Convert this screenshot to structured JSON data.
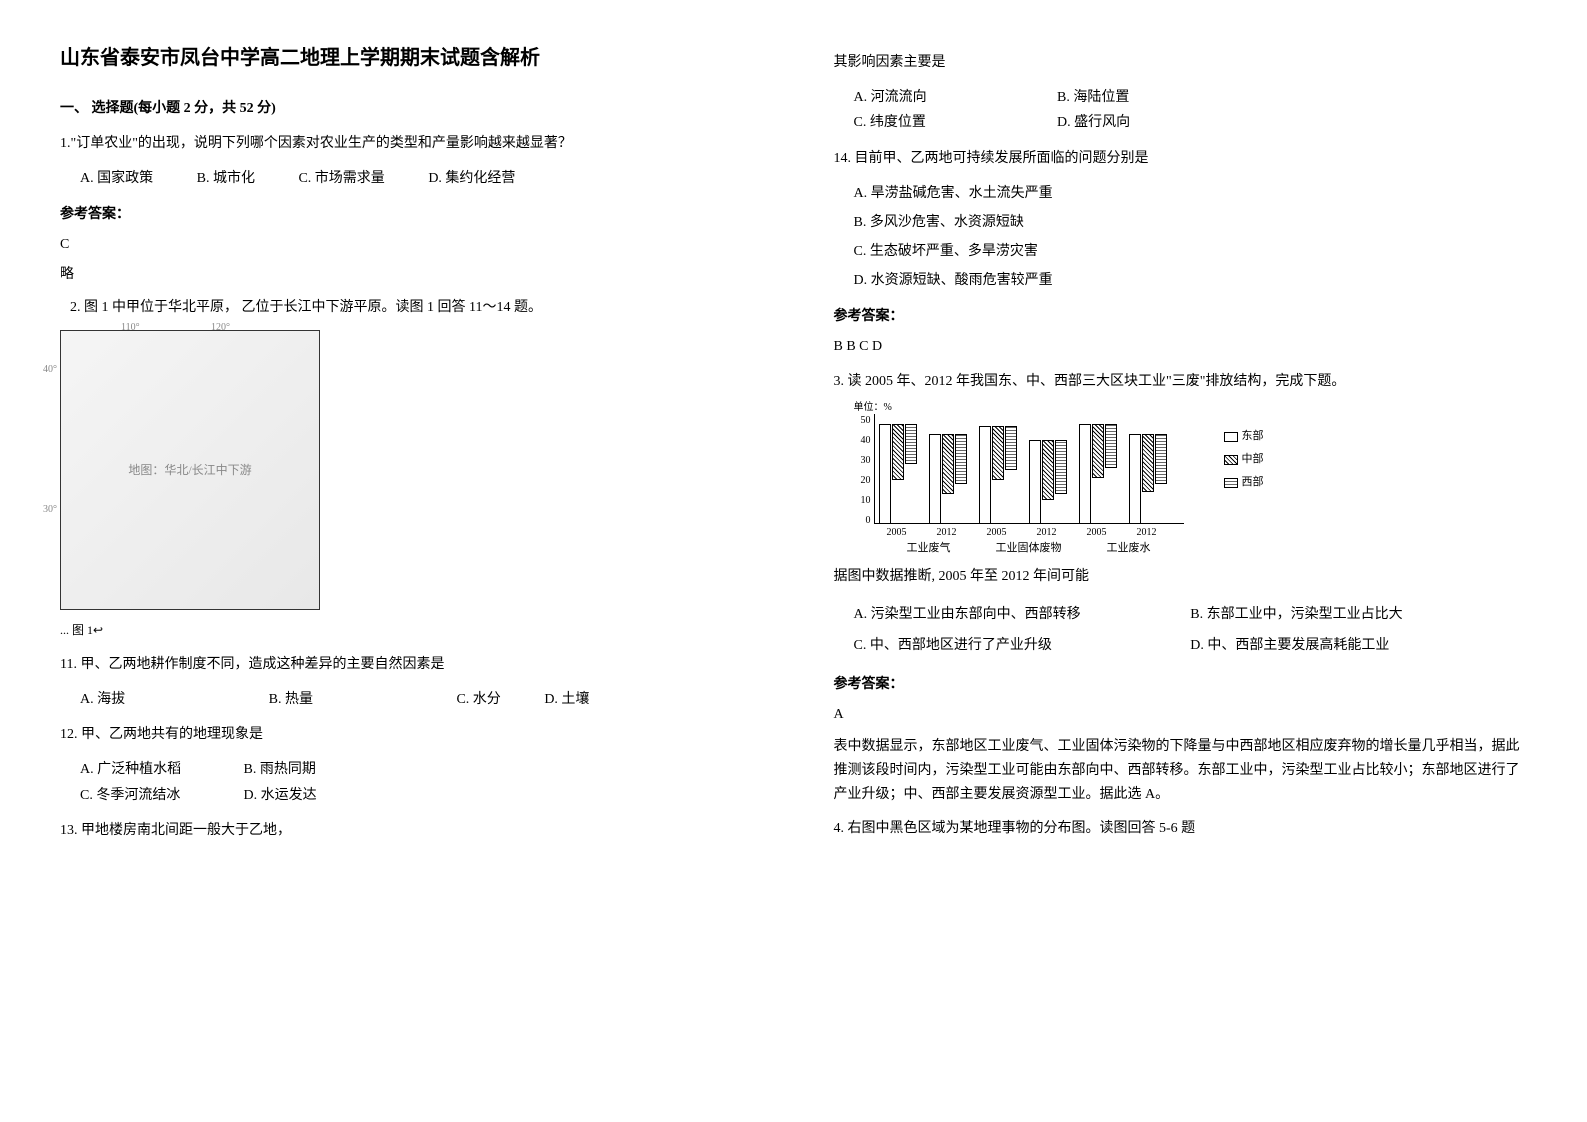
{
  "title": "山东省泰安市凤台中学高二地理上学期期末试题含解析",
  "section1": "一、 选择题(每小题 2 分，共 52 分)",
  "q1": {
    "stem": "1.\"订单农业\"的出现，说明下列哪个因素对农业生产的类型和产量影响越来越显著？",
    "A": "A. 国家政策",
    "B": "B. 城市化",
    "C": "C. 市场需求量",
    "D": "D. 集约化经营"
  },
  "ans_label": "参考答案：",
  "q1_ans": "C",
  "q1_ans2": "略",
  "q2_stem": "2. 图 1 中甲位于华北平原， 乙位于长江中下游平原。读图 1 回答 11～14 题。",
  "map_caption": "...                图 1↩",
  "q11": {
    "stem": "11. 甲、乙两地耕作制度不同，造成这种差异的主要自然因素是",
    "A": "A. 海拔",
    "B": "B. 热量",
    "C": "C. 水分",
    "D": "D. 土壤"
  },
  "q12": {
    "stem": "12.  甲、乙两地共有的地理现象是",
    "A": "A. 广泛种植水稻",
    "B": "B. 雨热同期",
    "C": "C. 冬季河流结冰",
    "D": "D. 水运发达"
  },
  "q13": {
    "stem": "13.  甲地楼房南北间距一般大于乙地，",
    "cont": "其影响因素主要是",
    "A": "A.  河流流向",
    "B": "B. 海陆位置",
    "C": "C.  纬度位置",
    "D": "D. 盛行风向"
  },
  "q14": {
    "stem": "14.  目前甲、乙两地可持续发展所面临的问题分别是",
    "A": "A. 旱涝盐碱危害、水土流失严重",
    "B": "B. 多风沙危害、水资源短缺",
    "C": "C. 生态破坏严重、多旱涝灾害",
    "D": "D. 水资源短缺、酸雨危害较严重"
  },
  "q2_ans": "B  B  C  D",
  "q3": {
    "stem": "3. 读 2005 年、2012 年我国东、中、西部三大区块工业\"三废\"排放结构，完成下题。",
    "sub_stem": "据图中数据推断, 2005 年至 2012 年间可能",
    "A": "A.  污染型工业由东部向中、西部转移",
    "B": "B.  东部工业中，污染型工业占比大",
    "C": "C.  中、西部地区进行了产业升级",
    "D": "D.  中、西部主要发展高耗能工业"
  },
  "q3_ans": "A",
  "q3_explain": "表中数据显示，东部地区工业废气、工业固体污染物的下降量与中西部地区相应废弃物的增长量几乎相当，据此推测该段时间内，污染型工业可能由东部向中、西部转移。东部工业中，污染型工业占比较小；东部地区进行了产业升级；中、西部主要发展资源型工业。据此选 A。",
  "q4_stem": "4. 右图中黑色区域为某地理事物的分布图。读图回答 5-6 题",
  "chart": {
    "y_unit": "单位：%",
    "y_ticks": [
      "50",
      "40",
      "30",
      "20",
      "10",
      "0"
    ],
    "y_max": 50,
    "x_years": [
      "2005",
      "2012",
      "2005",
      "2012",
      "2005",
      "2012"
    ],
    "group_labels": [
      "工业废气",
      "工业固体废物",
      "工业废水"
    ],
    "legend": [
      "东部",
      "中部",
      "西部"
    ],
    "groups": [
      {
        "east": 50,
        "mid": 28,
        "west": 20
      },
      {
        "east": 45,
        "mid": 30,
        "west": 25
      },
      {
        "east": 49,
        "mid": 27,
        "west": 22
      },
      {
        "east": 42,
        "mid": 30,
        "west": 27
      },
      {
        "east": 50,
        "mid": 27,
        "west": 22
      },
      {
        "east": 45,
        "mid": 29,
        "west": 25
      }
    ]
  }
}
